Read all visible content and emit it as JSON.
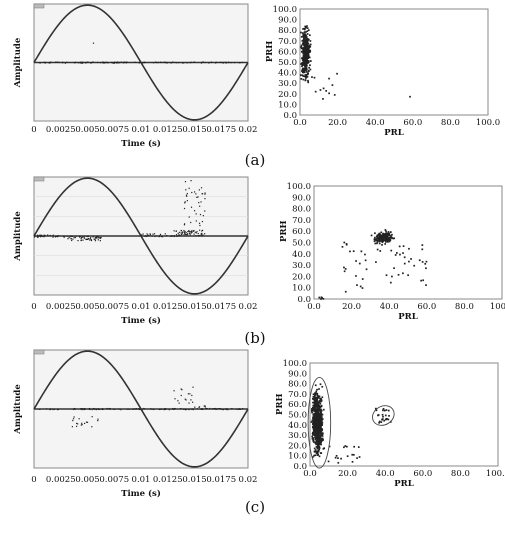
{
  "panels": [
    {
      "label": "(a)"
    },
    {
      "label": "(b)"
    },
    {
      "label": "(c)"
    }
  ],
  "colors": {
    "wave_plot_bg": "#f4f4f4",
    "curve": "#333333",
    "points": "#222222"
  },
  "chart_data": [
    {
      "type": "scatter",
      "panel": "(a)",
      "xlabel": "Time (s)",
      "ylabel": "Amplitude",
      "xticks": [
        "0",
        "0.0025",
        "0.005",
        "0.0075",
        "0.01",
        "0.0125",
        "0.015",
        "0.0175",
        "0.02"
      ],
      "xlim": [
        0,
        0.02
      ],
      "ylim": [
        -1,
        1
      ],
      "reference": "sine",
      "clusters": [
        {
          "x": [
            0.0005,
            0.0195
          ],
          "y": [
            -0.01,
            0.01
          ],
          "n": 120
        },
        {
          "x": [
            0.0055,
            0.0056
          ],
          "y": [
            0.32,
            0.34
          ],
          "n": 1
        }
      ]
    },
    {
      "type": "scatter",
      "panel": "(a)",
      "xlabel": "PRL",
      "ylabel": "PRH",
      "xticks": [
        "0.0",
        "20.0",
        "40.0",
        "60.0",
        "80.0",
        "100.0"
      ],
      "yticks": [
        "0.0",
        "10.0",
        "20.0",
        "30.0",
        "40.0",
        "50.0",
        "60.0",
        "70.0",
        "80.0",
        "90.0",
        "100.0"
      ],
      "xlim": [
        0,
        100
      ],
      "ylim": [
        0,
        100
      ],
      "clusters": [
        {
          "x": [
            0,
            6
          ],
          "y": [
            25,
            90
          ],
          "n": 380
        },
        {
          "x": [
            5,
            22
          ],
          "y": [
            15,
            40
          ],
          "n": 12
        },
        {
          "x": [
            57,
            59
          ],
          "y": [
            17,
            19
          ],
          "n": 1
        }
      ]
    },
    {
      "type": "scatter",
      "panel": "(b)",
      "xlabel": "Time (s)",
      "ylabel": "Amplitude",
      "xticks": [
        "0",
        "0.0025",
        "0.005",
        "0.0075",
        "0.01",
        "0.0125",
        "0.015",
        "0.0175",
        "0.02"
      ],
      "xlim": [
        0,
        0.02
      ],
      "ylim": [
        -1,
        1
      ],
      "reference": "sine",
      "clusters": [
        {
          "x": [
            0.0,
            0.003
          ],
          "y": [
            -0.02,
            0.02
          ],
          "n": 30
        },
        {
          "x": [
            0.003,
            0.0065
          ],
          "y": [
            -0.08,
            0.0
          ],
          "n": 60
        },
        {
          "x": [
            0.01,
            0.0135
          ],
          "y": [
            -0.01,
            0.04
          ],
          "n": 30
        },
        {
          "x": [
            0.013,
            0.016
          ],
          "y": [
            0.0,
            0.1
          ],
          "n": 60
        },
        {
          "x": [
            0.014,
            0.016
          ],
          "y": [
            0.1,
            0.95
          ],
          "n": 40
        }
      ]
    },
    {
      "type": "scatter",
      "panel": "(b)",
      "xlabel": "PRL",
      "ylabel": "PRH",
      "xticks": [
        "0.0",
        "20.0",
        "40.0",
        "60.0",
        "80.0",
        "100.0"
      ],
      "yticks": [
        "0.0",
        "10.0",
        "20.0",
        "30.0",
        "40.0",
        "50.0",
        "60.0",
        "70.0",
        "80.0",
        "90.0",
        "100.0"
      ],
      "xlim": [
        0,
        100
      ],
      "ylim": [
        0,
        100
      ],
      "clusters": [
        {
          "x": [
            30,
            44
          ],
          "y": [
            47,
            62
          ],
          "n": 160
        },
        {
          "x": [
            15,
            60
          ],
          "y": [
            5,
            55
          ],
          "n": 55
        },
        {
          "x": [
            2,
            6
          ],
          "y": [
            0,
            2
          ],
          "n": 5
        }
      ]
    },
    {
      "type": "scatter",
      "panel": "(c)",
      "xlabel": "Time (s)",
      "ylabel": "Amplitude",
      "xticks": [
        "0",
        "0.0025",
        "0.005",
        "0.0075",
        "0.01",
        "0.0125",
        "0.015",
        "0.0175",
        "0.02"
      ],
      "xlim": [
        0,
        0.02
      ],
      "ylim": [
        -1,
        1
      ],
      "reference": "sine",
      "clusters": [
        {
          "x": [
            0.0005,
            0.0195
          ],
          "y": [
            -0.01,
            0.01
          ],
          "n": 120
        },
        {
          "x": [
            0.0035,
            0.006
          ],
          "y": [
            -0.3,
            -0.12
          ],
          "n": 18
        },
        {
          "x": [
            0.013,
            0.015
          ],
          "y": [
            0.1,
            0.38
          ],
          "n": 16
        },
        {
          "x": [
            0.015,
            0.016
          ],
          "y": [
            0.0,
            0.06
          ],
          "n": 6
        }
      ]
    },
    {
      "type": "scatter",
      "panel": "(c)",
      "xlabel": "PRL",
      "ylabel": "PRH",
      "xticks": [
        "0.0",
        "20.0",
        "40.0",
        "60.0",
        "80.0",
        "100.0"
      ],
      "yticks": [
        "0.0",
        "10.0",
        "20.0",
        "30.0",
        "40.0",
        "50.0",
        "60.0",
        "70.0",
        "80.0",
        "90.0",
        "100.0"
      ],
      "xlim": [
        0,
        100
      ],
      "ylim": [
        0,
        100
      ],
      "clusters": [
        {
          "x": [
            0,
            8
          ],
          "y": [
            0,
            85
          ],
          "n": 650
        },
        {
          "x": [
            8,
            28
          ],
          "y": [
            2,
            20
          ],
          "n": 18
        },
        {
          "x": [
            34,
            44
          ],
          "y": [
            42,
            56
          ],
          "n": 25
        }
      ],
      "annotations": [
        {
          "type": "ellipse",
          "cx": 5,
          "cy": 42,
          "rx": 6,
          "ry": 44
        },
        {
          "type": "ellipse",
          "cx": 39,
          "cy": 49,
          "rx": 6,
          "ry": 9
        }
      ]
    }
  ]
}
